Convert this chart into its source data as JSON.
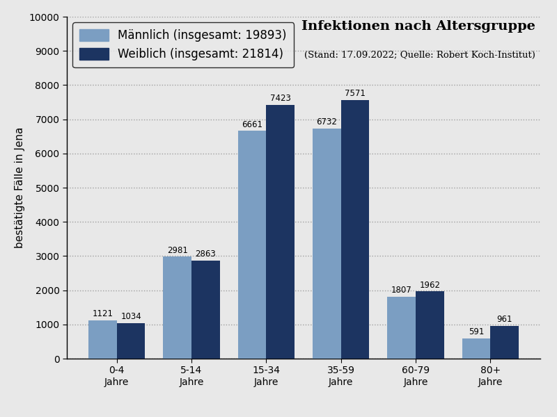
{
  "title": "Infektionen nach Altersgruppe",
  "subtitle": "(Stand: 17.09.2022; Quelle: Robert Koch-Institut)",
  "ylabel": "bestätigte Fälle in Jena",
  "categories": [
    "0-4\nJahre",
    "5-14\nJahre",
    "15-34\nJahre",
    "35-59\nJahre",
    "60-79\nJahre",
    "80+\nJahre"
  ],
  "maennlich_values": [
    1121,
    2981,
    6661,
    6732,
    1807,
    591
  ],
  "weiblich_values": [
    1034,
    2863,
    7423,
    7571,
    1962,
    961
  ],
  "maennlich_label": "Männlich",
  "maennlich_total": "19893",
  "weiblich_label": "Weiblich",
  "weiblich_total": "21814",
  "color_maennlich": "#7b9ec2",
  "color_weiblich": "#1c3461",
  "ylim": [
    0,
    10000
  ],
  "yticks": [
    0,
    1000,
    2000,
    3000,
    4000,
    5000,
    6000,
    7000,
    8000,
    9000,
    10000
  ],
  "background_color": "#e8e8e8",
  "bar_width": 0.38,
  "title_fontsize": 14,
  "subtitle_fontsize": 9.5,
  "axis_label_fontsize": 11,
  "tick_fontsize": 10,
  "legend_fontsize": 12,
  "legend_small_fontsize": 10,
  "bar_label_fontsize": 8.5
}
